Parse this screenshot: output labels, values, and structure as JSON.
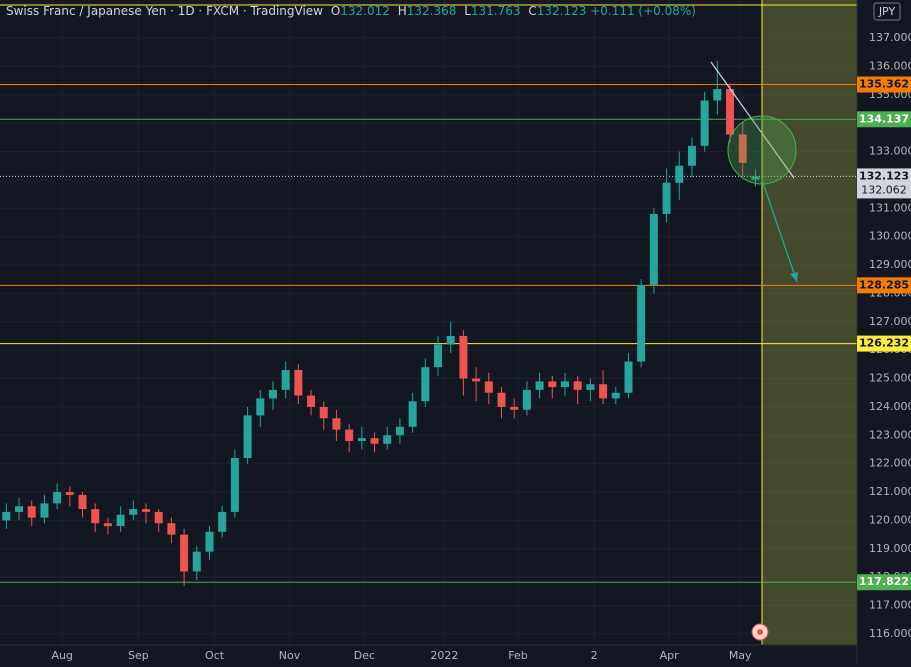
{
  "header": {
    "title": "Swiss Franc / Japanese Yen · 1D · FXCM · TradingView",
    "ohlc_letters": [
      "O",
      "H",
      "L",
      "C"
    ],
    "change": "+0.111 (+0.08%)",
    "currency": "JPY"
  },
  "chart_data": {
    "type": "candlestick",
    "up_color": "#26a69a",
    "down_color": "#ef5350",
    "candles": [
      [
        120.0,
        120.6,
        119.7,
        120.3
      ],
      [
        120.3,
        120.8,
        120.0,
        120.5
      ],
      [
        120.5,
        120.7,
        119.8,
        120.1
      ],
      [
        120.1,
        120.9,
        119.9,
        120.6
      ],
      [
        120.6,
        121.3,
        120.4,
        121.0
      ],
      [
        121.0,
        121.2,
        120.5,
        120.9
      ],
      [
        120.9,
        121.0,
        120.1,
        120.4
      ],
      [
        120.4,
        120.6,
        119.6,
        119.9
      ],
      [
        119.9,
        120.1,
        119.5,
        119.8
      ],
      [
        119.8,
        120.5,
        119.6,
        120.2
      ],
      [
        120.2,
        120.7,
        120.0,
        120.4
      ],
      [
        120.4,
        120.6,
        119.9,
        120.3
      ],
      [
        120.3,
        120.4,
        119.6,
        119.9
      ],
      [
        119.9,
        120.1,
        119.2,
        119.5
      ],
      [
        119.5,
        119.7,
        117.7,
        118.2
      ],
      [
        118.2,
        119.1,
        117.9,
        118.9
      ],
      [
        118.9,
        119.8,
        118.6,
        119.6
      ],
      [
        119.6,
        120.5,
        119.4,
        120.3
      ],
      [
        120.3,
        122.5,
        120.1,
        122.2
      ],
      [
        122.2,
        124.0,
        122.0,
        123.7
      ],
      [
        123.7,
        124.6,
        123.3,
        124.3
      ],
      [
        124.3,
        124.9,
        123.9,
        124.6
      ],
      [
        124.6,
        125.6,
        124.3,
        125.3
      ],
      [
        125.3,
        125.5,
        124.1,
        124.4
      ],
      [
        124.4,
        124.6,
        123.7,
        124.0
      ],
      [
        124.0,
        124.2,
        123.2,
        123.6
      ],
      [
        123.6,
        123.9,
        122.8,
        123.2
      ],
      [
        123.2,
        123.4,
        122.4,
        122.8
      ],
      [
        122.8,
        123.3,
        122.5,
        122.9
      ],
      [
        122.9,
        123.1,
        122.4,
        122.7
      ],
      [
        122.7,
        123.3,
        122.5,
        123.0
      ],
      [
        123.0,
        123.6,
        122.7,
        123.3
      ],
      [
        123.3,
        124.5,
        123.1,
        124.2
      ],
      [
        124.2,
        125.7,
        124.0,
        125.4
      ],
      [
        125.4,
        126.5,
        125.1,
        126.2
      ],
      [
        126.2,
        127.0,
        125.9,
        126.5
      ],
      [
        126.5,
        126.7,
        124.4,
        125.0
      ],
      [
        125.0,
        125.4,
        124.2,
        124.9
      ],
      [
        124.9,
        125.2,
        124.1,
        124.5
      ],
      [
        124.5,
        124.7,
        123.6,
        124.0
      ],
      [
        124.0,
        124.3,
        123.6,
        123.9
      ],
      [
        123.9,
        124.9,
        123.7,
        124.6
      ],
      [
        124.6,
        125.2,
        124.3,
        124.9
      ],
      [
        124.9,
        125.1,
        124.3,
        124.7
      ],
      [
        124.7,
        125.2,
        124.4,
        124.9
      ],
      [
        124.9,
        125.1,
        124.1,
        124.6
      ],
      [
        124.6,
        125.0,
        124.2,
        124.8
      ],
      [
        124.8,
        125.3,
        124.1,
        124.3
      ],
      [
        124.3,
        124.7,
        124.1,
        124.5
      ],
      [
        124.5,
        125.9,
        124.3,
        125.6
      ],
      [
        125.6,
        128.5,
        125.4,
        128.3
      ],
      [
        128.3,
        131.0,
        128.0,
        130.8
      ],
      [
        130.8,
        132.4,
        130.5,
        131.9
      ],
      [
        131.9,
        133.0,
        131.3,
        132.5
      ],
      [
        132.5,
        133.5,
        132.1,
        133.2
      ],
      [
        133.2,
        135.1,
        133.0,
        134.8
      ],
      [
        134.8,
        136.2,
        134.3,
        135.2
      ],
      [
        135.2,
        135.4,
        133.3,
        133.6
      ],
      [
        133.6,
        134.0,
        132.1,
        132.6
      ],
      [
        132.012,
        132.368,
        131.763,
        132.123
      ]
    ],
    "xlim": [
      0,
      67.5
    ],
    "xticks": [
      {
        "value": 4.9,
        "label": "Aug"
      },
      {
        "value": 10.9,
        "label": "Sep"
      },
      {
        "value": 16.9,
        "label": "Oct"
      },
      {
        "value": 22.8,
        "label": "Nov"
      },
      {
        "value": 28.7,
        "label": "Dec"
      },
      {
        "value": 35.0,
        "label": "2022"
      },
      {
        "value": 40.8,
        "label": "Feb"
      },
      {
        "value": 46.8,
        "label": "2"
      },
      {
        "value": 52.7,
        "label": "Apr"
      },
      {
        "value": 58.3,
        "label": "May"
      }
    ],
    "ylim": [
      115.61,
      138.34
    ],
    "yticks": [
      {
        "value": 116,
        "label": "116.000"
      },
      {
        "value": 117,
        "label": "117.000"
      },
      {
        "value": 118,
        "label": "118.000"
      },
      {
        "value": 119,
        "label": "119.000"
      },
      {
        "value": 120,
        "label": "120.000"
      },
      {
        "value": 121,
        "label": "121.000"
      },
      {
        "value": 122,
        "label": "122.000"
      },
      {
        "value": 123,
        "label": "123.000"
      },
      {
        "value": 124,
        "label": "124.000"
      },
      {
        "value": 125,
        "label": "125.000"
      },
      {
        "value": 126,
        "label": "126.000"
      },
      {
        "value": 127,
        "label": "127.000"
      },
      {
        "value": 128,
        "label": "128.000"
      },
      {
        "value": 129,
        "label": "129.000"
      },
      {
        "value": 130,
        "label": "130.000"
      },
      {
        "value": 131,
        "label": "131.000"
      },
      {
        "value": 132,
        "label": "132.000"
      },
      {
        "value": 133,
        "label": "133.000"
      },
      {
        "value": 134,
        "label": "134.000"
      },
      {
        "value": 135,
        "label": "135.000"
      },
      {
        "value": 136,
        "label": "136.000"
      },
      {
        "value": 137,
        "label": "137.000"
      }
    ],
    "grid": true,
    "extra_lines": [
      {
        "value": 138.162,
        "color": "#ffeb3b"
      }
    ],
    "levels": [
      {
        "value": 135.362,
        "color": "#f57c00",
        "text_color": "#131722"
      },
      {
        "value": 134.137,
        "color": "#4caf50",
        "text_color": "#ffffff"
      },
      {
        "value": 132.123,
        "color": "#d1d4dc",
        "text_color": "#131722"
      },
      {
        "value": 128.285,
        "color": "#f57c00",
        "text_color": "#131722"
      },
      {
        "value": 126.232,
        "color": "#ffeb3b",
        "text_color": "#131722"
      },
      {
        "value": 117.822,
        "color": "#4caf50",
        "text_color": "#ffffff"
      }
    ],
    "bid_price": 132.062
  }
}
